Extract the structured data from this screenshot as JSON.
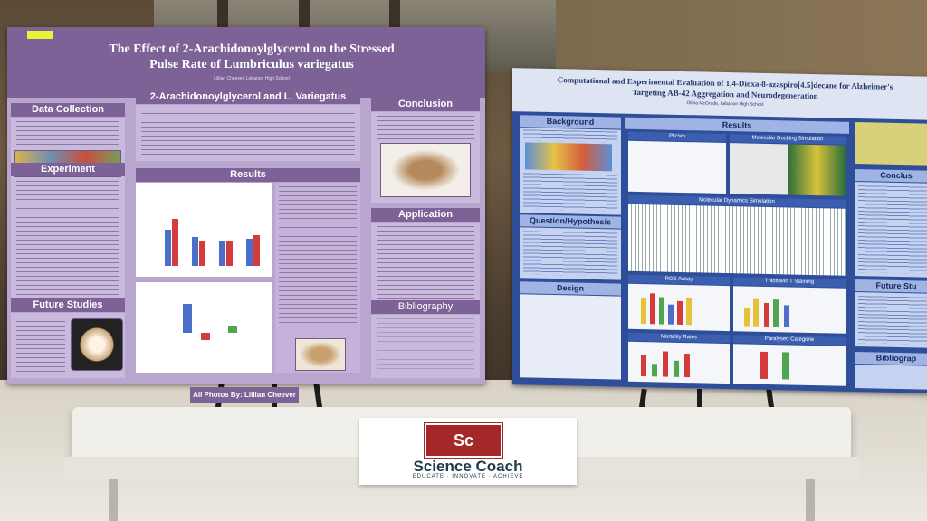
{
  "left_poster": {
    "title_line1": "The Effect of 2-Arachidonoylglycerol on the Stressed",
    "title_line2": "Pulse Rate of Lumbriculus variegatus",
    "author": "Lillian Cheever, Lebanon High School",
    "sections": {
      "data_collection": "Data Collection",
      "experiment": "Experiment",
      "future_studies": "Future Studies",
      "background": "2-Arachidonoylglycerol and L. Variegatus",
      "results": "Results",
      "conclusion": "Conclusion",
      "application": "Application",
      "bibliography": "Bibliography"
    },
    "credit": "All Photos By: Lillian Cheever",
    "colors": {
      "header": "#7c6296",
      "body": "#b9a6cf"
    }
  },
  "right_poster": {
    "title_line1": "Computational and Experimental Evaluation of 1,4-Dioxa-8-azaspiro[4.5]decane for Alzheimer's",
    "title_line2": "Targeting AB-42 Aggregation and Neurodegeneration",
    "author": "Olivia McGrude, Lebanon High School",
    "sections": {
      "background": "Background",
      "question": "Question/Hypothesis",
      "design": "Design",
      "results": "Results",
      "conclusion": "Conclus",
      "future": "Future Stu",
      "bibliography": "Bibliograp"
    },
    "panels": {
      "pkcsm": "Pkcsm",
      "docking": "Molecular Docking Simulation",
      "dynamics": "Molecular Dynamics Simulation",
      "ros": "ROS Assay",
      "thioflavin": "Thioflavin T Staining",
      "mortality": "Mortality Rates",
      "paralysis": "Paralysed Categorie"
    },
    "colors": {
      "background": "#2f4e9a",
      "header": "#9fb3e4"
    }
  },
  "sign": {
    "symbol": "Sc",
    "name": "Science Coach",
    "tagline": "EDUCATE · INNOVATE · ACHIEVE",
    "color": "#a4272a"
  }
}
